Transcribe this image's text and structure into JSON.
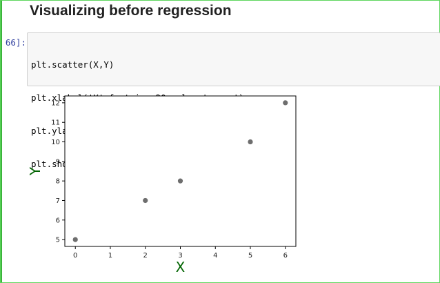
{
  "notebook": {
    "heading": "Visualizing before regression",
    "cell": {
      "prompt": "66]:",
      "code_lines": [
        "plt.scatter(X,Y)",
        "plt.xlabel('X',fontsize=20,color='green')",
        "plt.ylabel('Y',fontsize=20,color='green')",
        "plt.show()"
      ]
    }
  },
  "colors": {
    "frame_border": "#5cd65c",
    "point": "#6e6e6e",
    "axis_label": "#006400",
    "prompt": "#303f9f"
  },
  "chart_data": {
    "type": "scatter",
    "x": [
      0,
      2,
      3,
      5,
      6
    ],
    "y": [
      5,
      7,
      8,
      10,
      12
    ],
    "xlabel": "X",
    "ylabel": "Y",
    "xlim": [
      -0.3,
      6.3
    ],
    "ylim": [
      4.65,
      12.35
    ],
    "xticks": [
      "0",
      "1",
      "2",
      "3",
      "4",
      "5",
      "6"
    ],
    "yticks": [
      "5",
      "6",
      "7",
      "8",
      "9",
      "10",
      "11",
      "12"
    ],
    "grid": false
  }
}
